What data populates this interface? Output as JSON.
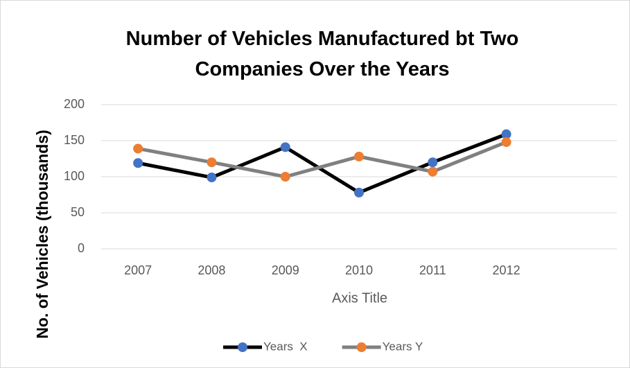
{
  "chart_data": {
    "type": "line",
    "title": "Number of Vehicles Manufactured bt Two Companies Over the Years",
    "x_label": "Axis Title",
    "y_label": "No. of Vehicles (thousands)",
    "categories": [
      "2007",
      "2008",
      "2009",
      "2010",
      "2011",
      "2012",
      null
    ],
    "series": [
      {
        "name": "Years  X",
        "color": "#000000",
        "marker_color": "#4472c4",
        "values": [
          119,
          99,
          141,
          78,
          120,
          159,
          null
        ]
      },
      {
        "name": "Years Y",
        "color": "#808080",
        "marker_color": "#ed7d31",
        "values": [
          139,
          120,
          100,
          128,
          107,
          148,
          null
        ]
      }
    ],
    "ylim": [
      0,
      200
    ],
    "yticks": [
      0,
      50,
      100,
      150,
      200
    ],
    "grid": true,
    "legend": "bottom"
  }
}
